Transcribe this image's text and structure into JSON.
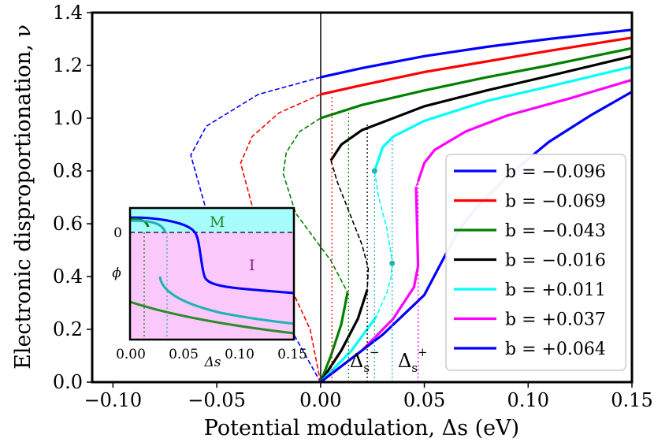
{
  "chart_data": {
    "type": "line",
    "xlabel": "Potential modulation, Δs (eV)",
    "ylabel": "Electronic disproportionation, ν",
    "xlim": [
      -0.11,
      0.15
    ],
    "ylim": [
      0.0,
      1.4
    ],
    "xticks": [
      -0.1,
      -0.05,
      0.0,
      0.05,
      0.1,
      0.15
    ],
    "xtick_labels": [
      "−0.10",
      "−0.05",
      "0.00",
      "0.05",
      "0.10",
      "0.15"
    ],
    "yticks": [
      0.0,
      0.2,
      0.4,
      0.6,
      0.8,
      1.0,
      1.2,
      1.4
    ],
    "ytick_labels": [
      "0.0",
      "0.2",
      "0.4",
      "0.6",
      "0.8",
      "1.0",
      "1.2",
      "1.4"
    ],
    "legend_position": "lower-right",
    "series": [
      {
        "name": "b = −0.096",
        "color": "#0000ff",
        "stable": [
          [
            0.0,
            1.155
          ],
          [
            0.02,
            1.19
          ],
          [
            0.05,
            1.235
          ],
          [
            0.08,
            1.27
          ],
          [
            0.11,
            1.3
          ],
          [
            0.15,
            1.335
          ]
        ],
        "unstable": [
          [
            0.0,
            1.155
          ],
          [
            -0.03,
            1.09
          ],
          [
            -0.055,
            0.97
          ],
          [
            -0.0625,
            0.86
          ],
          [
            -0.055,
            0.65
          ],
          [
            -0.035,
            0.42
          ],
          [
            -0.015,
            0.21
          ],
          [
            0.0,
            0.0
          ]
        ]
      },
      {
        "name": "b = −0.069",
        "color": "#ff0000",
        "stable": [
          [
            0.0,
            1.09
          ],
          [
            0.02,
            1.125
          ],
          [
            0.05,
            1.175
          ],
          [
            0.08,
            1.215
          ],
          [
            0.11,
            1.255
          ],
          [
            0.15,
            1.305
          ]
        ],
        "unstable": [
          [
            0.0,
            1.09
          ],
          [
            -0.02,
            1.02
          ],
          [
            -0.033,
            0.93
          ],
          [
            -0.0385,
            0.83
          ],
          [
            -0.032,
            0.64
          ],
          [
            -0.018,
            0.42
          ],
          [
            -0.005,
            0.2
          ],
          [
            0.0,
            0.0
          ]
        ]
      },
      {
        "name": "b = −0.043",
        "color": "#008000",
        "stable": [
          [
            0.0,
            1.0
          ],
          [
            0.02,
            1.05
          ],
          [
            0.05,
            1.105
          ],
          [
            0.08,
            1.155
          ],
          [
            0.11,
            1.2
          ],
          [
            0.15,
            1.265
          ]
        ],
        "unstable": [
          [
            0.0,
            1.0
          ],
          [
            -0.01,
            0.95
          ],
          [
            -0.0165,
            0.87
          ],
          [
            -0.018,
            0.79
          ],
          [
            -0.012,
            0.64
          ],
          [
            0.005,
            0.46
          ],
          [
            0.013,
            0.34
          ]
        ],
        "lower": [
          [
            0.013,
            0.34
          ],
          [
            0.01,
            0.22
          ],
          [
            0.005,
            0.1
          ],
          [
            0.0,
            0.0
          ]
        ]
      },
      {
        "name": "b = −0.016",
        "color": "#000000",
        "stable": [
          [
            0.005,
            0.84
          ],
          [
            0.01,
            0.9
          ],
          [
            0.02,
            0.955
          ],
          [
            0.05,
            1.045
          ],
          [
            0.08,
            1.105
          ],
          [
            0.11,
            1.16
          ],
          [
            0.15,
            1.235
          ]
        ],
        "unstable": [
          [
            0.005,
            0.84
          ],
          [
            0.008,
            0.76
          ],
          [
            0.014,
            0.64
          ],
          [
            0.02,
            0.52
          ],
          [
            0.023,
            0.43
          ],
          [
            0.0225,
            0.35
          ]
        ],
        "lower": [
          [
            0.0225,
            0.35
          ],
          [
            0.018,
            0.24
          ],
          [
            0.01,
            0.12
          ],
          [
            0.0,
            0.0
          ]
        ]
      },
      {
        "name": "b = +0.011",
        "color": "#00ffff",
        "stable": [
          [
            0.026,
            0.8
          ],
          [
            0.03,
            0.89
          ],
          [
            0.035,
            0.93
          ],
          [
            0.05,
            0.99
          ],
          [
            0.08,
            1.065
          ],
          [
            0.11,
            1.12
          ],
          [
            0.15,
            1.195
          ]
        ],
        "unstable": [
          [
            0.026,
            0.8
          ],
          [
            0.028,
            0.7
          ],
          [
            0.032,
            0.58
          ],
          [
            0.0345,
            0.46
          ],
          [
            0.034,
            0.4
          ],
          [
            0.032,
            0.34
          ],
          [
            0.027,
            0.25
          ]
        ],
        "lower": [
          [
            0.027,
            0.25
          ],
          [
            0.015,
            0.12
          ],
          [
            0.0,
            0.0
          ]
        ]
      },
      {
        "name": "b = +0.037",
        "color": "#ff00ff",
        "stable": [
          [
            0.047,
            0.76
          ],
          [
            0.05,
            0.83
          ],
          [
            0.055,
            0.88
          ],
          [
            0.07,
            0.95
          ],
          [
            0.09,
            1.01
          ],
          [
            0.12,
            1.075
          ],
          [
            0.15,
            1.145
          ]
        ],
        "unstable": [
          [
            0.047,
            0.76
          ],
          [
            0.046,
            0.74
          ]
        ],
        "lower": [
          [
            0.0,
            0.0
          ],
          [
            0.02,
            0.12
          ],
          [
            0.035,
            0.24
          ],
          [
            0.045,
            0.36
          ],
          [
            0.047,
            0.44
          ],
          [
            0.046,
            0.74
          ]
        ]
      },
      {
        "name": "b = +0.064",
        "color": "#0000ff",
        "stable": [
          [
            0.0,
            0.0
          ],
          [
            0.03,
            0.18
          ],
          [
            0.05,
            0.33
          ],
          [
            0.06,
            0.48
          ],
          [
            0.067,
            0.58
          ],
          [
            0.075,
            0.66
          ],
          [
            0.09,
            0.78
          ],
          [
            0.11,
            0.91
          ],
          [
            0.13,
            1.01
          ],
          [
            0.15,
            1.1
          ]
        ],
        "unstable": [],
        "lower": []
      }
    ],
    "annotations": [
      "Δs−",
      "Δs+"
    ],
    "inset": {
      "xlabel": "Δs",
      "ylabel": "ϕ",
      "xlim": [
        0.0,
        0.15
      ],
      "xticks": [
        0.0,
        0.05,
        0.1,
        0.15
      ],
      "xtick_labels": [
        "0.00",
        "0.05",
        "0.10",
        "0.15"
      ],
      "ytick_labels": [
        "0"
      ],
      "region_top": "M",
      "region_bottom": "I"
    }
  }
}
